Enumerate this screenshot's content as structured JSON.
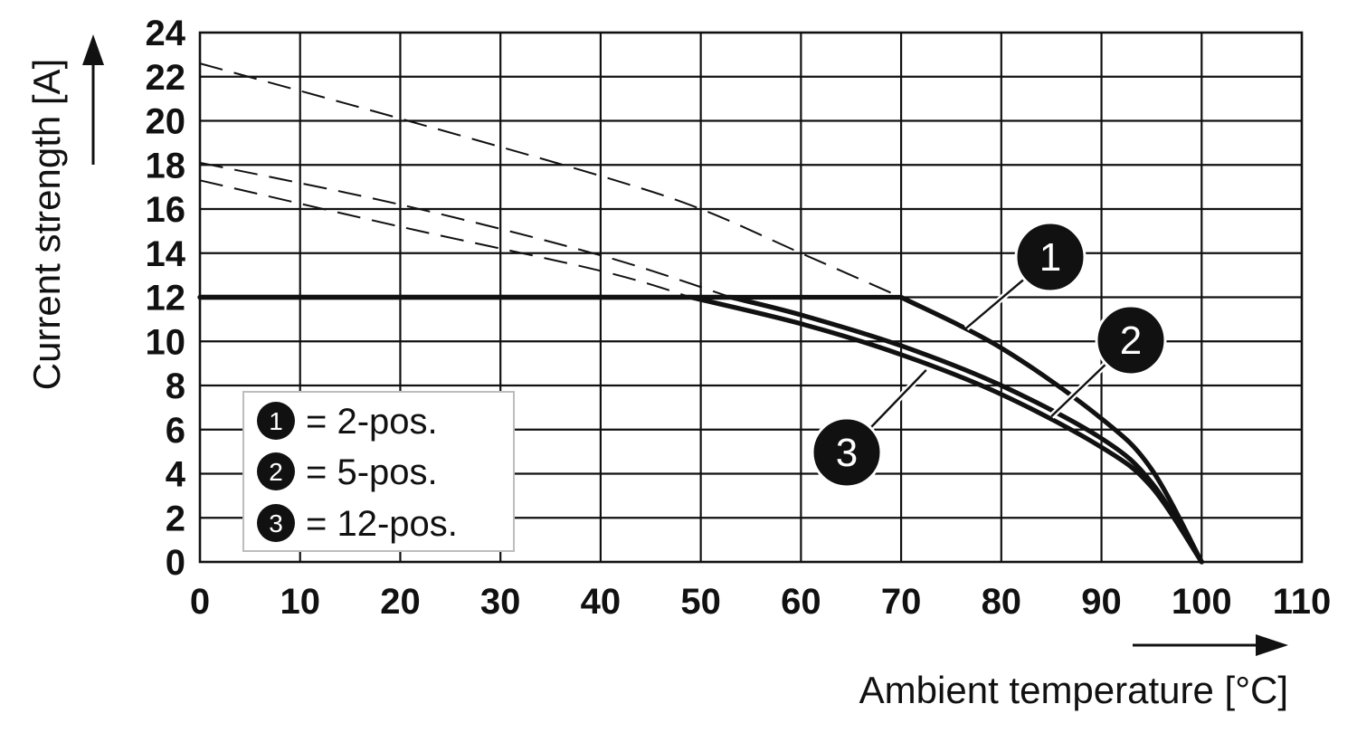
{
  "chart_data": {
    "type": "line",
    "xlabel": "Ambient temperature [°C]",
    "ylabel": "Current strength [A]",
    "xlim": [
      0,
      110
    ],
    "ylim": [
      0,
      24
    ],
    "xticks": [
      "0",
      "10",
      "20",
      "30",
      "40",
      "50",
      "60",
      "70",
      "80",
      "90",
      "100",
      "110"
    ],
    "yticks": [
      "0",
      "2",
      "4",
      "6",
      "8",
      "10",
      "12",
      "14",
      "16",
      "18",
      "20",
      "22",
      "24"
    ],
    "grid": true,
    "legend_placement": "bottom-left",
    "series": [
      {
        "name": "2-pos.",
        "marker": "1",
        "solid": {
          "x": [
            0,
            70,
            80,
            90,
            95,
            100
          ],
          "y": [
            12,
            12,
            9.7,
            6.5,
            4.2,
            0
          ]
        },
        "dashed": {
          "x": [
            0,
            20,
            40,
            50,
            60,
            70
          ],
          "y": [
            22.6,
            20.1,
            17.5,
            16,
            14,
            12
          ]
        }
      },
      {
        "name": "5-pos.",
        "marker": "2",
        "solid": {
          "x": [
            0,
            53,
            60,
            70,
            80,
            90,
            95,
            100
          ],
          "y": [
            12,
            12,
            11.2,
            9.8,
            8,
            5.6,
            3.6,
            0
          ]
        },
        "dashed": {
          "x": [
            0,
            20,
            40,
            53
          ],
          "y": [
            18.1,
            16.2,
            13.9,
            12
          ]
        }
      },
      {
        "name": "12-pos.",
        "marker": "3",
        "solid": {
          "x": [
            0,
            49,
            60,
            70,
            80,
            90,
            95,
            100
          ],
          "y": [
            12,
            12,
            10.8,
            9.4,
            7.6,
            5.2,
            3.4,
            0
          ]
        },
        "dashed": {
          "x": [
            0,
            20,
            40,
            49
          ],
          "y": [
            17.3,
            15.2,
            13.2,
            12
          ]
        }
      }
    ],
    "legend": [
      {
        "marker": "1",
        "sep": "=",
        "text": "2-pos."
      },
      {
        "marker": "2",
        "sep": "=",
        "text": "5-pos."
      },
      {
        "marker": "3",
        "sep": "=",
        "text": "12-pos."
      }
    ],
    "callouts": [
      {
        "marker": "1",
        "at": {
          "x": 76.5,
          "y": 10.6
        }
      },
      {
        "marker": "2",
        "at": {
          "x": 85,
          "y": 6.6
        }
      },
      {
        "marker": "3",
        "at": {
          "x": 72.5,
          "y": 8.7
        }
      }
    ],
    "colors": {
      "ink": "#111111",
      "grid": "#111111",
      "background": "#ffffff"
    }
  }
}
